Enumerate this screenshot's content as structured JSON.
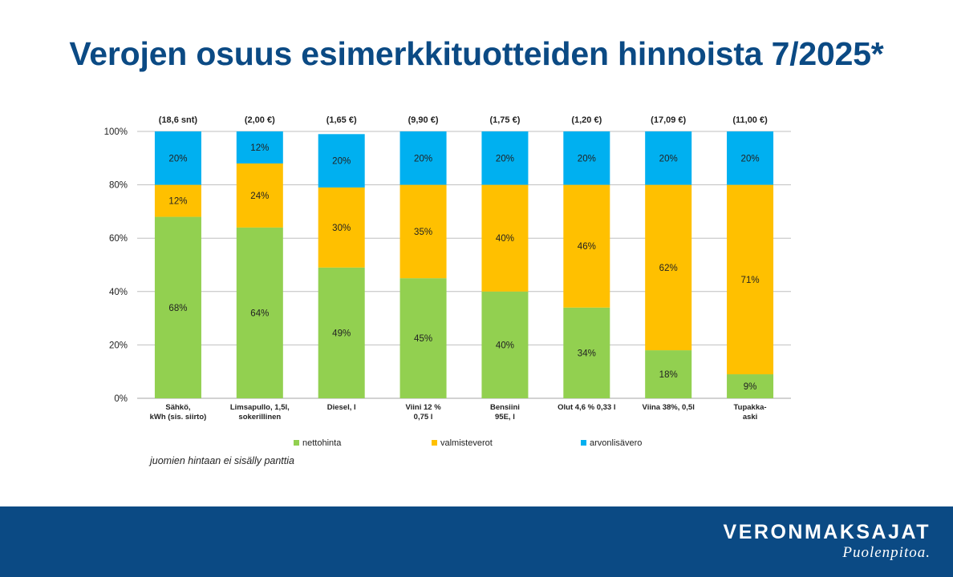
{
  "page": {
    "title": "Verojen osuus esimerkkituotteiden hinnoista 7/2025*"
  },
  "note": "juomien hintaan ei sisälly panttia",
  "footer": {
    "brand": "VERONMAKSAJAT",
    "slogan": "Puolenpitoa."
  },
  "colors": {
    "nettohinta": "#92d050",
    "valmisteverot": "#ffc000",
    "arvonlisavero": "#00b0f0",
    "brand": "#0b4a84",
    "grid": "#bfbfbf"
  },
  "chart_data": {
    "type": "bar",
    "stacked": true,
    "title": "Verojen osuus esimerkkituotteiden hinnoista 7/2025*",
    "categories": [
      [
        "Sähkö,",
        "kWh (sis. siirto)"
      ],
      [
        "Limsapullo, 1,5l,",
        "sokerillinen"
      ],
      [
        "Diesel, l"
      ],
      [
        "Viini 12 %",
        "0,75 l"
      ],
      [
        "Bensiini",
        "95E, l"
      ],
      [
        "Olut 4,6 % 0,33 l"
      ],
      [
        "Viina 38%, 0,5l"
      ],
      [
        "Tupakka-",
        "aski"
      ]
    ],
    "prices": [
      "(18,6 snt)",
      "(2,00 €)",
      "(1,65 €)",
      "(9,90 €)",
      "(1,75 €)",
      "(1,20 €)",
      "(17,09 €)",
      "(11,00 €)"
    ],
    "series": [
      {
        "name": "nettohinta",
        "color": "#92d050",
        "values": [
          68,
          64,
          49,
          45,
          40,
          34,
          18,
          9
        ],
        "labels": [
          "68%",
          "64%",
          "49%",
          "45%",
          "40%",
          "34%",
          "18%",
          "9%"
        ]
      },
      {
        "name": "valmisteverot",
        "color": "#ffc000",
        "values": [
          12,
          24,
          30,
          35,
          40,
          46,
          62,
          71
        ],
        "labels": [
          "12%",
          "24%",
          "30%",
          "35%",
          "40%",
          "46%",
          "62%",
          "71%"
        ]
      },
      {
        "name": "arvonlisävero",
        "color": "#00b0f0",
        "values": [
          20,
          12,
          20,
          20,
          20,
          20,
          20,
          20
        ],
        "labels": [
          "20%",
          "12%",
          "20%",
          "20%",
          "20%",
          "20%",
          "20%",
          "20%"
        ]
      }
    ],
    "yticks": [
      "0%",
      "20%",
      "40%",
      "60%",
      "80%",
      "100%"
    ],
    "ylim": [
      0,
      100
    ],
    "xlabel": "",
    "ylabel": "",
    "legend": "bottom"
  }
}
